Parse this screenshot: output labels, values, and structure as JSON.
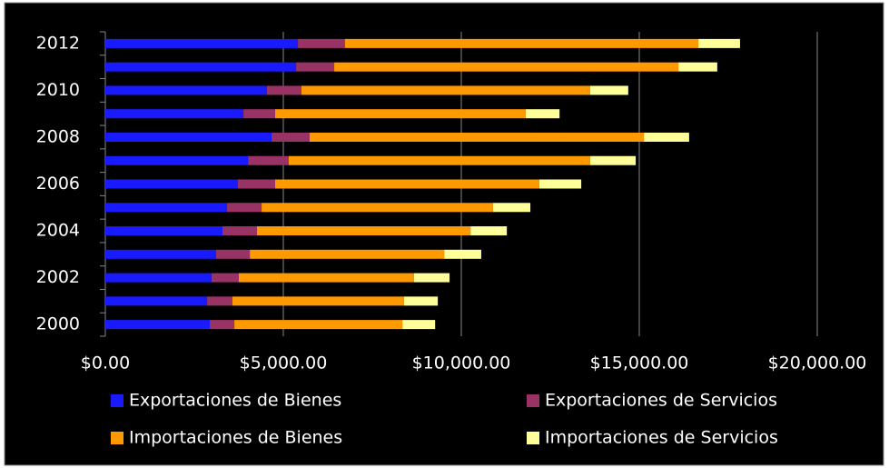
{
  "chart_data": {
    "type": "stacked_bar_horizontal",
    "categories": [
      "2000",
      null,
      "2002",
      null,
      "2004",
      null,
      "2006",
      null,
      "2008",
      null,
      "2010",
      null,
      "2012"
    ],
    "series": [
      {
        "name": "Exportaciones de Bienes",
        "color": "#1a1aff",
        "values": [
          2935,
          2860,
          2980,
          3110,
          3290,
          3420,
          3720,
          4010,
          4670,
          3880,
          4540,
          5360,
          5410
        ]
      },
      {
        "name": "Exportaciones de Servicios",
        "color": "#993366",
        "values": [
          690,
          710,
          770,
          950,
          970,
          970,
          1050,
          1140,
          1070,
          890,
          970,
          1070,
          1320
        ]
      },
      {
        "name": "Importaciones de Bienes",
        "color": "#ff9900",
        "values": [
          4720,
          4820,
          4920,
          5460,
          6000,
          6500,
          7420,
          8470,
          9390,
          7040,
          8110,
          9670,
          9930
        ]
      },
      {
        "name": "Importaciones de Servicios",
        "color": "#ffff99",
        "values": [
          920,
          950,
          1000,
          1040,
          1020,
          1050,
          1180,
          1280,
          1270,
          950,
          1070,
          1090,
          1170
        ]
      }
    ],
    "xlim": [
      0,
      20000
    ],
    "xticks": [
      {
        "value": 0,
        "label": "$0.00"
      },
      {
        "value": 5000,
        "label": "$5,000.00"
      },
      {
        "value": 10000,
        "label": "$10,000.00"
      },
      {
        "value": 15000,
        "label": "$15,000.00"
      },
      {
        "value": 20000,
        "label": "$20,000.00"
      }
    ],
    "grid": true,
    "legend": "bottom"
  }
}
